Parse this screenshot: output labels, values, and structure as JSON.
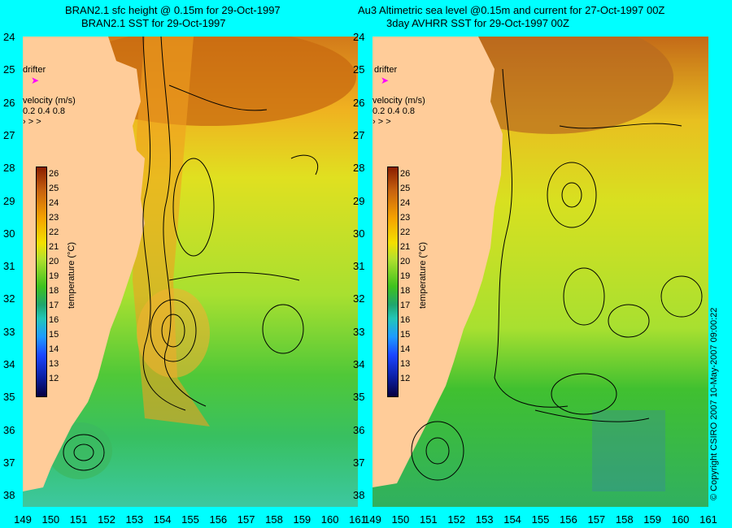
{
  "titles": {
    "left_line1": "BRAN2.1 sfc height @ 0.15m for 29-Oct-1997",
    "left_line2": "BRAN2.1 SST for 29-Oct-1997",
    "right_line1": "Au3 Altimetric sea level  @0.15m and current for 27-Oct-1997 00Z",
    "right_line2": "3day AVHRR SST for 29-Oct-1997 00Z"
  },
  "y_ticks": [
    "24",
    "25",
    "26",
    "27",
    "28",
    "29",
    "30",
    "31",
    "32",
    "33",
    "34",
    "35",
    "36",
    "37",
    "38"
  ],
  "x_ticks": [
    "149",
    "150",
    "151",
    "152",
    "153",
    "154",
    "155",
    "156",
    "157",
    "158",
    "159",
    "160",
    "161"
  ],
  "drifter_label": "drifter",
  "velocity": {
    "title": "velocity (m/s)",
    "scale": "0.2 0.4 0.8",
    "arrows": "› > >"
  },
  "colorbar": {
    "title": "temperature (°C)",
    "ticks": [
      "26",
      "25",
      "24",
      "23",
      "22",
      "21",
      "20",
      "19",
      "18",
      "17",
      "16",
      "15",
      "14",
      "13",
      "12"
    ]
  },
  "copyright": "© Copyright CSIRO 2007   10-May-2007 09:00:22",
  "colors": {
    "background": "#00ffff",
    "land": "#ffcc99",
    "drifter": "#ff00ff"
  }
}
